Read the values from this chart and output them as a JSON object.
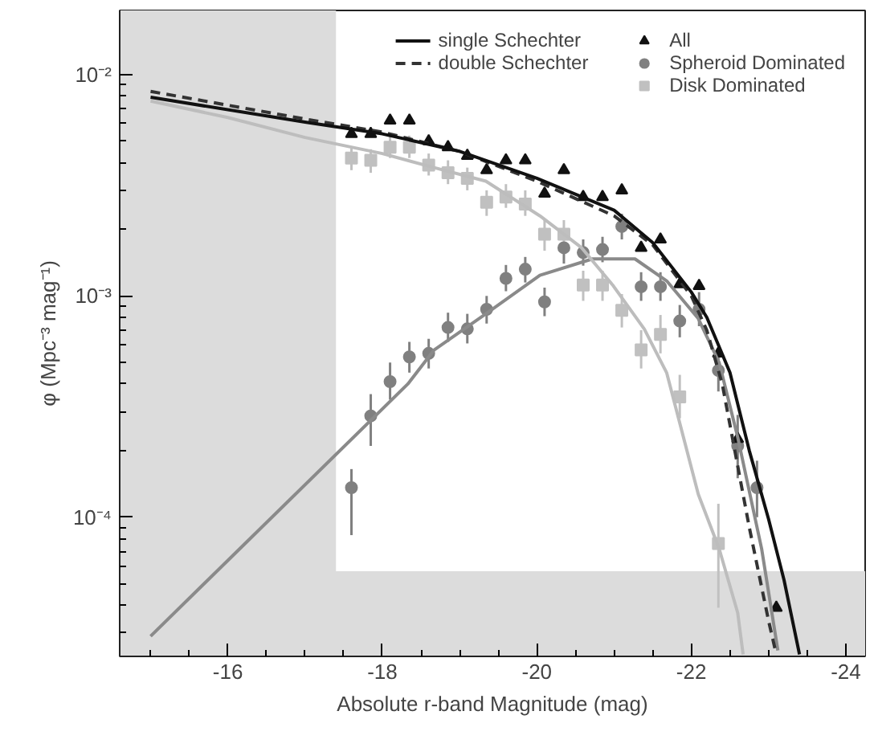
{
  "chart_data": {
    "type": "scatter",
    "xlabel": "Absolute r-band Magnitude (mag)",
    "ylabel": "φ (Mpc⁻³ mag⁻¹)",
    "log": "y",
    "xlim": [
      -14.6,
      -24.25
    ],
    "xticks": [
      -16,
      -18,
      -20,
      -22,
      -24
    ],
    "ylim": [
      2.35e-05,
      0.0195
    ],
    "yticks": [
      {
        "value": 0.0001,
        "label": "10⁻⁴"
      },
      {
        "value": 0.001,
        "label": "10⁻³"
      },
      {
        "value": 0.01,
        "label": "10⁻²"
      }
    ],
    "grid": false,
    "legend": "top right",
    "bands": [
      {
        "axis": "x",
        "from": -14.6,
        "to": -17.4,
        "color": "#dcdcdc"
      },
      {
        "axis": "y",
        "from": 2.35e-05,
        "to": 5.7e-05,
        "color": "#dcdcdc"
      }
    ],
    "series": [
      {
        "name": "single Schechter",
        "type": "line",
        "color": "#111111",
        "line_style": "solid",
        "x": [
          -15,
          -17,
          -18,
          -19,
          -20,
          -21,
          -21.5,
          -22,
          -22.2,
          -22.5,
          -22.75,
          -23,
          -23.2,
          -23.4
        ],
        "values": [
          0.0079,
          0.0061,
          0.0054,
          0.0045,
          0.0034,
          0.00244,
          0.00174,
          0.00104,
          0.0008,
          0.00045,
          0.0002,
          9.8e-05,
          5.2e-05,
          2.4e-05
        ]
      },
      {
        "name": "double Schechter",
        "type": "line",
        "color": "#333333",
        "line_style": "dashed",
        "x": [
          -15,
          -17,
          -18,
          -19,
          -20,
          -21,
          -21.5,
          -22,
          -22.2,
          -22.4,
          -22.75,
          -23,
          -23.1
        ],
        "values": [
          0.0084,
          0.0063,
          0.0055,
          0.0045,
          0.0033,
          0.0023,
          0.0017,
          0.001,
          0.0007,
          0.0004,
          9e-05,
          3.4e-05,
          2.4e-05
        ]
      },
      {
        "type": "line",
        "color": "#bdbdbd",
        "line_style": "solid",
        "x": [
          -15,
          -16,
          -17,
          -18,
          -18.67,
          -19.34,
          -20.04,
          -20.58,
          -20.99,
          -21.39,
          -21.68,
          -22.09,
          -22.36,
          -22.6,
          -22.67
        ],
        "values": [
          0.0076,
          0.0064,
          0.0052,
          0.0044,
          0.0038,
          0.0033,
          0.0023,
          0.00165,
          0.00111,
          0.00071,
          0.00045,
          0.000127,
          7.2e-05,
          3.7e-05,
          2.4e-05
        ]
      },
      {
        "type": "line",
        "color": "#8a8a8a",
        "line_style": "solid",
        "x": [
          -15,
          -18.33,
          -18.67,
          -19.34,
          -20.04,
          -20.72,
          -21.27,
          -21.68,
          -22.09,
          -22.36,
          -22.6,
          -22.91,
          -23.12
        ],
        "values": [
          2.9e-05,
          0.0004,
          0.00057,
          0.00083,
          0.00124,
          0.00147,
          0.00147,
          0.00117,
          0.00079,
          0.0005,
          0.00023,
          7.2e-05,
          2.5e-05
        ]
      },
      {
        "name": "All",
        "marker": "triangle",
        "color": "#111111",
        "x": [
          -17.6,
          -17.85,
          -18.1,
          -18.35,
          -18.6,
          -18.85,
          -19.1,
          -19.35,
          -19.6,
          -19.85,
          -20.1,
          -20.35,
          -20.6,
          -20.85,
          -21.1,
          -21.35,
          -21.6,
          -21.85,
          -22.1,
          -22.35,
          -22.6,
          -23.1
        ],
        "values": [
          0.0054,
          0.0054,
          0.0062,
          0.0062,
          0.005,
          0.0047,
          0.0043,
          0.0037,
          0.0041,
          0.0041,
          0.0029,
          0.0037,
          0.0028,
          0.0028,
          0.003,
          0.00165,
          0.0018,
          0.00113,
          0.00111,
          0.00055,
          0.000226,
          3.9e-05
        ]
      },
      {
        "name": "Spheroid Dominated",
        "marker": "circle",
        "color": "#808080",
        "x": [
          -17.6,
          -17.85,
          -18.1,
          -18.35,
          -18.6,
          -18.85,
          -19.1,
          -19.35,
          -19.6,
          -19.85,
          -20.1,
          -20.35,
          -20.6,
          -20.85,
          -21.1,
          -21.35,
          -21.6,
          -21.85,
          -22.1,
          -22.35,
          -22.6,
          -22.85
        ],
        "values": [
          0.000136,
          0.000287,
          0.00041,
          0.00053,
          0.00055,
          0.00072,
          0.00071,
          0.00087,
          0.0012,
          0.00132,
          0.00094,
          0.00165,
          0.00157,
          0.00162,
          0.00206,
          0.0011,
          0.0011,
          0.00077,
          0.00087,
          0.00046,
          0.00021,
          0.000136
        ],
        "errors": [
          [
            8.3e-05,
            0.000165
          ],
          [
            0.00021,
            0.00036
          ],
          [
            0.00034,
            0.0005
          ],
          [
            0.00045,
            0.00062
          ],
          [
            0.00047,
            0.00064
          ],
          [
            0.00062,
            0.00084
          ],
          [
            0.00061,
            0.00083
          ],
          [
            0.00075,
            0.001
          ],
          [
            0.00105,
            0.00138
          ],
          [
            0.00115,
            0.0015
          ],
          [
            0.00081,
            0.00109
          ],
          [
            0.0014,
            0.00175
          ],
          [
            0.00137,
            0.0018
          ],
          [
            0.00142,
            0.00185
          ],
          [
            0.0018,
            0.00235
          ],
          [
            0.00095,
            0.00128
          ],
          [
            0.00095,
            0.00128
          ],
          [
            0.00065,
            0.00091
          ],
          [
            0.00073,
            0.00104
          ],
          [
            0.00037,
            0.00057
          ],
          [
            0.00015,
            0.00029
          ],
          [
            0.0001,
            0.00018
          ]
        ]
      },
      {
        "name": "Disk Dominated",
        "marker": "square",
        "color": "#c0c0c0",
        "x": [
          -17.6,
          -17.85,
          -18.1,
          -18.35,
          -18.6,
          -18.85,
          -19.1,
          -19.35,
          -19.6,
          -19.85,
          -20.1,
          -20.35,
          -20.6,
          -20.85,
          -21.1,
          -21.35,
          -21.6,
          -21.85,
          -22.1,
          -22.35
        ],
        "values": [
          0.0042,
          0.0041,
          0.0047,
          0.0047,
          0.0039,
          0.0036,
          0.0034,
          0.00265,
          0.0028,
          0.0026,
          0.0019,
          0.0019,
          0.00112,
          0.00112,
          0.00086,
          0.00057,
          0.00067,
          0.00035,
          null,
          7.6e-05
        ],
        "errors": [
          [
            0.0037,
            0.0047
          ],
          [
            0.0036,
            0.0046
          ],
          [
            0.0042,
            0.0053
          ],
          [
            0.0042,
            0.0053
          ],
          [
            0.0035,
            0.0044
          ],
          [
            0.0032,
            0.0041
          ],
          [
            0.003,
            0.0038
          ],
          [
            0.0023,
            0.003
          ],
          [
            0.0025,
            0.0032
          ],
          [
            0.0023,
            0.003
          ],
          [
            0.0016,
            0.0022
          ],
          [
            0.0016,
            0.0022
          ],
          [
            0.00095,
            0.0013
          ],
          [
            0.00095,
            0.0013
          ],
          [
            0.00072,
            0.00102
          ],
          [
            0.00047,
            0.0007
          ],
          [
            0.00055,
            0.00082
          ],
          [
            0.00028,
            0.00044
          ],
          null,
          [
            3.9e-05,
            0.000115
          ]
        ]
      }
    ]
  }
}
